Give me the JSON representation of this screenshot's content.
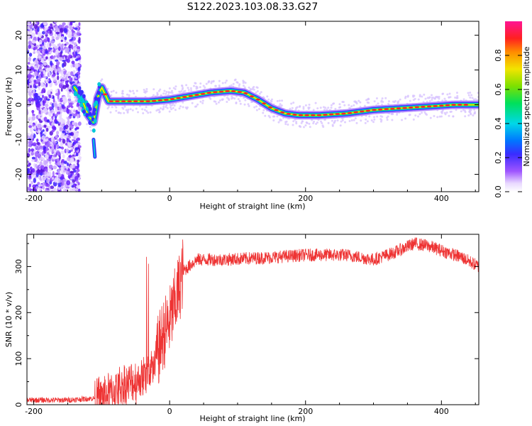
{
  "title": "S122.2023.103.08.33.G27",
  "chart_data": [
    {
      "type": "heatmap",
      "xlabel": "Height of straight line (km)",
      "ylabel": "Frequency (Hz)",
      "xlim": [
        -210,
        455
      ],
      "ylim": [
        -25,
        24
      ],
      "xticks": [
        -200,
        0,
        200,
        400
      ],
      "yticks": [
        -20,
        -10,
        0,
        10,
        20
      ],
      "colorbar": {
        "label": "Normalized spectral amplitude",
        "range": [
          0,
          1
        ],
        "ticks": [
          0.0,
          0.2,
          0.4,
          0.6,
          0.8
        ],
        "tick_labels": [
          "0.0",
          "0.2",
          "0.4",
          "0.6",
          "0.8"
        ],
        "colormap": "rainbow"
      },
      "noise_region_x": [
        -210,
        -140
      ],
      "ridge": {
        "x": [
          -140,
          -130,
          -120,
          -112,
          -106,
          -100,
          -90,
          -60,
          -30,
          0,
          30,
          60,
          90,
          110,
          130,
          150,
          170,
          190,
          220,
          260,
          300,
          340,
          380,
          420,
          455
        ],
        "freq": [
          5,
          2,
          -3,
          -5,
          2,
          5,
          1,
          1,
          1,
          1.5,
          2.5,
          3.5,
          4,
          3.5,
          1.5,
          -1,
          -2.5,
          -3,
          -3,
          -2.5,
          -1.5,
          -1,
          -0.5,
          0,
          0
        ]
      },
      "branch": {
        "x": [
          -112,
          -111,
          -110
        ],
        "freq": [
          -10,
          -13,
          -15
        ]
      }
    },
    {
      "type": "line",
      "xlabel": "Height of straight line (km)",
      "ylabel": "SNR (10 * v/v)",
      "xlim": [
        -210,
        455
      ],
      "ylim": [
        0,
        370
      ],
      "xticks": [
        -200,
        0,
        200,
        400
      ],
      "yticks": [
        0,
        100,
        200,
        300
      ],
      "color": "#ee3333",
      "envelope": {
        "x": [
          -210,
          -150,
          -100,
          -70,
          -50,
          -30,
          -20,
          -10,
          0,
          10,
          20,
          40,
          80,
          150,
          200,
          260,
          300,
          330,
          360,
          380,
          400,
          430,
          455
        ],
        "y": [
          10,
          10,
          15,
          40,
          50,
          70,
          100,
          150,
          180,
          230,
          290,
          315,
          315,
          320,
          325,
          325,
          315,
          330,
          350,
          345,
          335,
          320,
          300
        ]
      }
    }
  ]
}
